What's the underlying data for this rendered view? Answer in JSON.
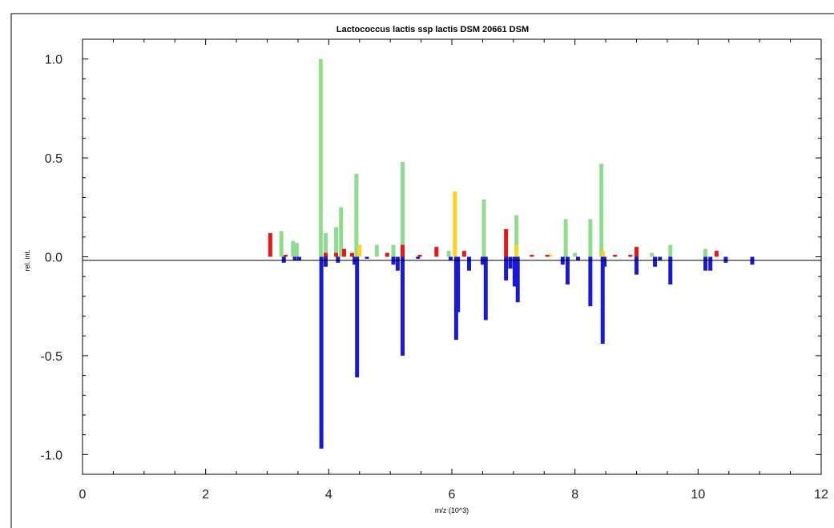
{
  "chart_data": {
    "type": "bar",
    "title": "Lactococcus lactis ssp lactis DSM 20661 DSM",
    "xlabel": "m/z (10^3)",
    "ylabel": "rel. int.",
    "xlim": [
      0,
      12
    ],
    "ylim": [
      -1.1,
      1.1
    ],
    "x_ticks": [
      "0",
      "2",
      "4",
      "6",
      "8",
      "10",
      "12"
    ],
    "y_ticks": [
      "1.0",
      "0.5",
      "0.0",
      "-0.5",
      "-1.0"
    ],
    "grid": false,
    "zero_line": true,
    "series": [
      {
        "color": "#8fdc8f",
        "points": [
          [
            3.23,
            0.13
          ],
          [
            3.42,
            0.08
          ],
          [
            3.48,
            0.07
          ],
          [
            3.87,
            1.0
          ],
          [
            3.95,
            0.12
          ],
          [
            4.12,
            0.15
          ],
          [
            4.2,
            0.25
          ],
          [
            4.45,
            0.42
          ],
          [
            4.78,
            0.06
          ],
          [
            5.05,
            0.06
          ],
          [
            5.2,
            0.48
          ],
          [
            5.95,
            0.03
          ],
          [
            6.52,
            0.29
          ],
          [
            7.05,
            0.21
          ],
          [
            7.85,
            0.19
          ],
          [
            8.0,
            0.02
          ],
          [
            8.25,
            0.19
          ],
          [
            8.43,
            0.47
          ],
          [
            9.25,
            0.02
          ],
          [
            9.55,
            0.06
          ],
          [
            10.12,
            0.04
          ]
        ]
      },
      {
        "color": "#ffd21e",
        "points": [
          [
            4.5,
            0.06
          ],
          [
            6.05,
            0.33
          ],
          [
            7.05,
            0.06
          ],
          [
            8.45,
            0.03
          ],
          [
            7.6,
            0.01
          ]
        ]
      },
      {
        "color": "#e81818",
        "points": [
          [
            3.05,
            0.12
          ],
          [
            3.3,
            0.01
          ],
          [
            3.95,
            0.02
          ],
          [
            4.12,
            0.02
          ],
          [
            4.25,
            0.04
          ],
          [
            4.38,
            0.02
          ],
          [
            4.95,
            0.02
          ],
          [
            5.2,
            0.06
          ],
          [
            5.48,
            0.01
          ],
          [
            5.75,
            0.05
          ],
          [
            6.2,
            0.03
          ],
          [
            6.88,
            0.14
          ],
          [
            7.3,
            0.01
          ],
          [
            7.55,
            0.01
          ],
          [
            8.9,
            0.01
          ],
          [
            9.0,
            0.05
          ],
          [
            10.3,
            0.03
          ],
          [
            8.65,
            0.01
          ]
        ]
      },
      {
        "color": "#1a1ad2",
        "points": [
          [
            3.27,
            -0.03
          ],
          [
            3.45,
            -0.02
          ],
          [
            3.52,
            -0.02
          ],
          [
            3.88,
            -0.97
          ],
          [
            3.95,
            -0.05
          ],
          [
            4.15,
            -0.03
          ],
          [
            4.42,
            -0.04
          ],
          [
            4.46,
            -0.61
          ],
          [
            4.62,
            -0.01
          ],
          [
            5.05,
            -0.04
          ],
          [
            5.12,
            -0.07
          ],
          [
            5.2,
            -0.5
          ],
          [
            5.45,
            -0.01
          ],
          [
            5.98,
            -0.02
          ],
          [
            6.07,
            -0.42
          ],
          [
            6.1,
            -0.28
          ],
          [
            6.28,
            -0.07
          ],
          [
            6.5,
            -0.04
          ],
          [
            6.55,
            -0.32
          ],
          [
            6.88,
            -0.12
          ],
          [
            6.95,
            -0.06
          ],
          [
            7.02,
            -0.15
          ],
          [
            7.07,
            -0.23
          ],
          [
            7.8,
            -0.04
          ],
          [
            7.88,
            -0.14
          ],
          [
            8.05,
            -0.02
          ],
          [
            8.25,
            -0.25
          ],
          [
            8.45,
            -0.44
          ],
          [
            8.48,
            -0.05
          ],
          [
            9.0,
            -0.09
          ],
          [
            9.3,
            -0.05
          ],
          [
            9.38,
            -0.02
          ],
          [
            9.55,
            -0.14
          ],
          [
            10.12,
            -0.07
          ],
          [
            10.2,
            -0.07
          ],
          [
            10.45,
            -0.03
          ],
          [
            10.88,
            -0.04
          ]
        ]
      }
    ]
  }
}
